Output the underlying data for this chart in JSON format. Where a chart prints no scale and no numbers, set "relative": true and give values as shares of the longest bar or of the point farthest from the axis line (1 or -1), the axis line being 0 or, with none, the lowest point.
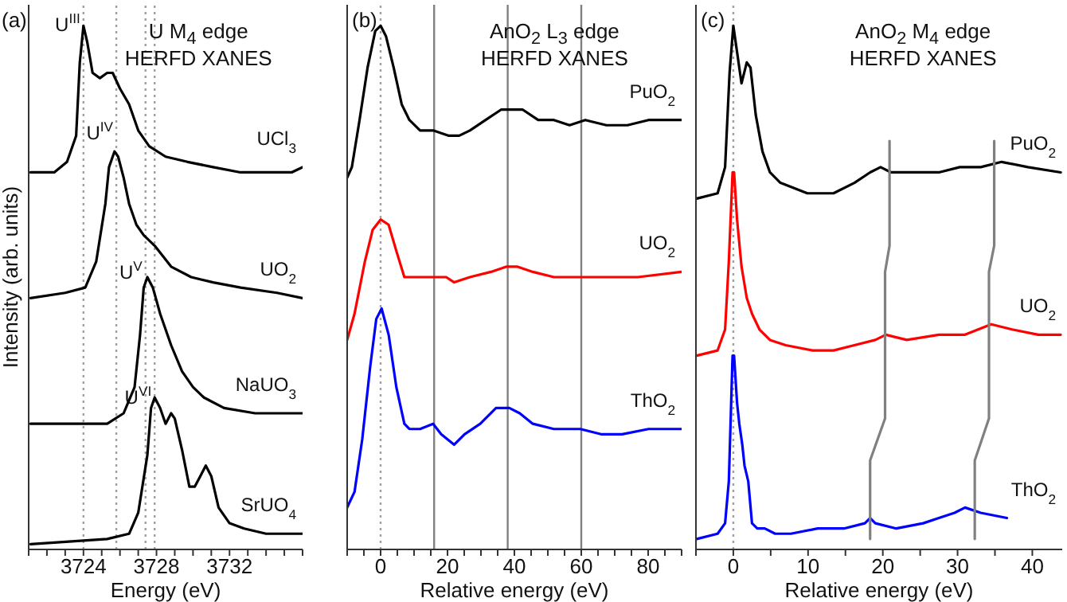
{
  "chart_data": [
    {
      "type": "line",
      "xlabel": "Energy (eV)",
      "ylabel": "Intensity (arb. units)",
      "relative": true,
      "tick_labels": "x",
      "marker": "none",
      "line_style": "solid",
      "xlim": [
        3721,
        3736
      ],
      "xticks": [
        {
          "value": 3721,
          "label": null
        },
        {
          "value": 3722,
          "label": null
        },
        {
          "value": 3723,
          "label": null
        },
        3724,
        {
          "value": 3725,
          "label": null
        },
        {
          "value": 3726,
          "label": null
        },
        {
          "value": 3727,
          "label": null
        },
        3728,
        {
          "value": 3729,
          "label": null
        },
        {
          "value": 3730,
          "label": null
        },
        {
          "value": 3731,
          "label": null
        },
        3732,
        {
          "value": 3733,
          "label": null
        },
        {
          "value": 3734,
          "label": null
        },
        {
          "value": 3735,
          "label": null
        },
        {
          "value": 3736,
          "label": null
        }
      ],
      "annotations": [
        "(a)",
        "U M$_{4}$ edge",
        "HERFD XANES"
      ],
      "ref_lines": [
        {
          "axis": "x",
          "value": 3724.0,
          "label": "U$^{III}$",
          "color": "#a0a0a0",
          "line_style": "dotted"
        },
        {
          "axis": "x",
          "value": 3725.8,
          "label": "U$^{IV}$",
          "color": "#a0a0a0",
          "line_style": "dotted"
        },
        {
          "axis": "x",
          "value": 3727.4,
          "label": "U$^{V}$",
          "color": "#a0a0a0",
          "line_style": "dotted"
        },
        {
          "axis": "x",
          "value": 3727.9,
          "label": "U$^{VI}$",
          "color": "#a0a0a0",
          "line_style": "dotted"
        }
      ],
      "series": [
        {
          "name": "UCl$_{3}$",
          "color": "#000000",
          "x": [
            3721.1,
            3722.4,
            3723.1,
            3723.6,
            3723.8,
            3724.0,
            3724.2,
            3724.5,
            3724.9,
            3725.3,
            3725.6,
            3726.0,
            3726.5,
            3727.0,
            3727.6,
            3728.5,
            3729.7,
            3731.1,
            3732.6,
            3734.0,
            3735.4,
            3736.0
          ],
          "values": [
            0.72,
            0.72,
            0.74,
            0.79,
            0.93,
            1.0,
            0.97,
            0.91,
            0.9,
            0.91,
            0.91,
            0.88,
            0.85,
            0.8,
            0.77,
            0.75,
            0.74,
            0.73,
            0.72,
            0.72,
            0.72,
            0.73
          ]
        },
        {
          "name": "UO$_{2}$",
          "color": "#000000",
          "x": [
            3721.1,
            3723.0,
            3724.1,
            3724.7,
            3725.2,
            3725.4,
            3725.7,
            3725.9,
            3726.2,
            3726.5,
            3726.9,
            3727.3,
            3727.9,
            3728.8,
            3729.9,
            3731.1,
            3732.6,
            3734.6,
            3736.0
          ],
          "values": [
            0.48,
            0.49,
            0.5,
            0.55,
            0.66,
            0.73,
            0.76,
            0.75,
            0.71,
            0.66,
            0.62,
            0.6,
            0.58,
            0.54,
            0.52,
            0.51,
            0.5,
            0.49,
            0.48
          ]
        },
        {
          "name": "NaUO$_{3}$",
          "color": "#000000",
          "x": [
            3721.1,
            3723.9,
            3725.3,
            3726.2,
            3726.8,
            3727.1,
            3727.3,
            3727.5,
            3727.8,
            3728.2,
            3728.8,
            3729.4,
            3730.0,
            3730.6,
            3731.7,
            3733.4,
            3736.0
          ],
          "values": [
            0.24,
            0.24,
            0.24,
            0.26,
            0.31,
            0.41,
            0.5,
            0.52,
            0.5,
            0.45,
            0.39,
            0.34,
            0.31,
            0.29,
            0.27,
            0.26,
            0.26
          ]
        },
        {
          "name": "SrUO$_{4}$",
          "color": "#000000",
          "x": [
            3721.1,
            3725.3,
            3726.5,
            3727.0,
            3727.5,
            3727.7,
            3727.9,
            3728.2,
            3728.5,
            3728.8,
            3729.0,
            3729.4,
            3729.8,
            3730.1,
            3730.4,
            3730.7,
            3731.0,
            3731.4,
            3732.0,
            3732.8,
            3734.0,
            3736.0
          ],
          "values": [
            0.01,
            0.02,
            0.03,
            0.07,
            0.18,
            0.27,
            0.29,
            0.27,
            0.24,
            0.26,
            0.25,
            0.19,
            0.12,
            0.12,
            0.14,
            0.16,
            0.14,
            0.08,
            0.05,
            0.04,
            0.03,
            0.03
          ]
        }
      ]
    },
    {
      "type": "line",
      "xlabel": "Relative energy (eV)",
      "relative": true,
      "tick_labels": "x",
      "marker": "none",
      "line_style": "solid",
      "xlim": [
        -10,
        90
      ],
      "xticks": [
        {
          "value": -10,
          "label": null
        },
        {
          "value": -5,
          "label": null
        },
        0,
        {
          "value": 5,
          "label": null
        },
        {
          "value": 10,
          "label": null
        },
        {
          "value": 15,
          "label": null
        },
        20,
        {
          "value": 25,
          "label": null
        },
        {
          "value": 30,
          "label": null
        },
        {
          "value": 35,
          "label": null
        },
        40,
        {
          "value": 45,
          "label": null
        },
        {
          "value": 50,
          "label": null
        },
        {
          "value": 55,
          "label": null
        },
        60,
        {
          "value": 65,
          "label": null
        },
        {
          "value": 70,
          "label": null
        },
        {
          "value": 75,
          "label": null
        },
        80,
        {
          "value": 85,
          "label": null
        },
        {
          "value": 90,
          "label": null
        }
      ],
      "annotations": [
        "(b)",
        "AnO$_{2}$ L$_{3}$ edge",
        "HERFD XANES"
      ],
      "ref_lines": [
        {
          "axis": "x",
          "value": 0,
          "color": "#a0a0a0",
          "line_style": "dotted"
        },
        {
          "axis": "x",
          "value": 16,
          "color": "#808080",
          "line_style": "solid"
        },
        {
          "axis": "x",
          "value": 38,
          "color": "#808080",
          "line_style": "solid"
        },
        {
          "axis": "x",
          "value": 60,
          "color": "#808080",
          "line_style": "solid"
        }
      ],
      "series": [
        {
          "name": "PuO$_{2}$",
          "color": "#000000",
          "x": [
            -10,
            -8.6,
            -6.3,
            -3.9,
            -1.6,
            0,
            1.6,
            3.9,
            6.3,
            8.6,
            11.8,
            15.7,
            20.4,
            23.5,
            26.7,
            31.4,
            36.1,
            39.2,
            42.4,
            47.1,
            51.8,
            56.5,
            61.2,
            67.5,
            73.8,
            80.1,
            90
          ],
          "values": [
            0.71,
            0.73,
            0.82,
            0.92,
            0.99,
            1.0,
            0.98,
            0.92,
            0.85,
            0.82,
            0.8,
            0.8,
            0.79,
            0.79,
            0.8,
            0.82,
            0.84,
            0.84,
            0.84,
            0.82,
            0.82,
            0.81,
            0.82,
            0.81,
            0.81,
            0.82,
            0.82
          ]
        },
        {
          "name": "UO$_{2}$",
          "color": "#ff0000",
          "x": [
            -10,
            -7.8,
            -4.7,
            -2.4,
            0,
            2.4,
            4.7,
            7.1,
            9.4,
            12.6,
            16.5,
            19.6,
            22,
            26.7,
            33,
            37.7,
            40.8,
            45.5,
            51.8,
            59.7,
            67.5,
            76.9,
            90
          ],
          "values": [
            0.4,
            0.45,
            0.55,
            0.61,
            0.63,
            0.62,
            0.57,
            0.52,
            0.52,
            0.52,
            0.52,
            0.52,
            0.51,
            0.52,
            0.53,
            0.54,
            0.54,
            0.53,
            0.52,
            0.52,
            0.52,
            0.52,
            0.53
          ]
        },
        {
          "name": "ThO$_{2}$",
          "color": "#0000ff",
          "x": [
            -10,
            -7.8,
            -5.5,
            -3.1,
            -1.3,
            0.3,
            2.4,
            4.7,
            7.1,
            8.6,
            11.8,
            15.7,
            18.1,
            22,
            25.1,
            29.8,
            34.5,
            38.5,
            41.6,
            45.5,
            51.8,
            59.7,
            65.9,
            72.2,
            80.1,
            90
          ],
          "values": [
            0.08,
            0.11,
            0.21,
            0.35,
            0.44,
            0.46,
            0.41,
            0.31,
            0.24,
            0.23,
            0.23,
            0.24,
            0.22,
            0.2,
            0.22,
            0.24,
            0.27,
            0.27,
            0.26,
            0.24,
            0.23,
            0.23,
            0.22,
            0.22,
            0.23,
            0.23
          ]
        }
      ]
    },
    {
      "type": "line",
      "xlabel": "Relative energy (eV)",
      "relative": true,
      "tick_labels": "x",
      "marker": "none",
      "line_style": "solid",
      "xlim": [
        -5,
        44
      ],
      "xticks": [
        {
          "value": -5,
          "label": null
        },
        0,
        {
          "value": 5,
          "label": null
        },
        10,
        {
          "value": 15,
          "label": null
        },
        20,
        {
          "value": 25,
          "label": null
        },
        30,
        {
          "value": 35,
          "label": null
        },
        40
      ],
      "annotations": [
        "(c)",
        "AnO$_{2}$ M$_{4}$ edge",
        "HERFD XANES"
      ],
      "ref_lines": [
        {
          "axis": "x",
          "value": 0,
          "color": "#a0a0a0",
          "line_style": "dotted"
        }
      ],
      "series": [
        {
          "name": "PuO$_{2}$",
          "color": "#000000",
          "x": [
            -4.9,
            -2.1,
            -1.1,
            -0.5,
            0,
            0.5,
            1.1,
            1.8,
            2.3,
            3.0,
            3.9,
            4.9,
            6.3,
            9.9,
            13.4,
            16.2,
            18.3,
            19.7,
            21.1,
            23.2,
            27.5,
            30.3,
            33.1,
            35.9,
            39.4,
            43.8
          ],
          "values": [
            0.67,
            0.68,
            0.73,
            0.91,
            1.0,
            0.95,
            0.89,
            0.93,
            0.92,
            0.83,
            0.76,
            0.72,
            0.7,
            0.68,
            0.68,
            0.7,
            0.72,
            0.73,
            0.72,
            0.72,
            0.72,
            0.73,
            0.73,
            0.74,
            0.73,
            0.72
          ]
        },
        {
          "name": "UO$_{2}$",
          "color": "#ff0000",
          "x": [
            -4.9,
            -2.1,
            -1.1,
            -0.6,
            -0.1,
            0.1,
            0.5,
            1.1,
            1.8,
            2.5,
            3.5,
            4.9,
            7.0,
            10.6,
            13.4,
            16.2,
            19.0,
            20.4,
            23.2,
            27.5,
            31.0,
            34.5,
            37.3,
            40.8,
            43.8
          ],
          "values": [
            0.37,
            0.38,
            0.42,
            0.55,
            0.72,
            0.72,
            0.63,
            0.54,
            0.48,
            0.45,
            0.42,
            0.4,
            0.39,
            0.38,
            0.38,
            0.39,
            0.4,
            0.41,
            0.4,
            0.41,
            0.41,
            0.43,
            0.42,
            0.41,
            0.41
          ]
        },
        {
          "name": "ThO$_{2}$",
          "color": "#0000ff",
          "x": [
            -4.9,
            -2.1,
            -1.1,
            -0.6,
            -0.1,
            0.1,
            0.5,
            0.8,
            1.2,
            1.5,
            2.0,
            2.5,
            3.2,
            4.2,
            5.6,
            7.7,
            11.3,
            14.8,
            17.6,
            18.3,
            19.0,
            21.8,
            25.4,
            27.5,
            29.6,
            31.0,
            33.1,
            36.6
          ],
          "values": [
            0.02,
            0.03,
            0.05,
            0.13,
            0.37,
            0.37,
            0.28,
            0.24,
            0.2,
            0.16,
            0.13,
            0.05,
            0.04,
            0.04,
            0.03,
            0.03,
            0.04,
            0.04,
            0.05,
            0.06,
            0.05,
            0.04,
            0.05,
            0.06,
            0.07,
            0.08,
            0.07,
            0.06
          ]
        },
        {
          "color": "#808080",
          "x": [
            20.9,
            20.9,
            20.3,
            20.3,
            18.3,
            18.3
          ],
          "values": [
            0.78,
            0.58,
            0.53,
            0.25,
            0.17,
            0.02
          ]
        },
        {
          "color": "#808080",
          "x": [
            34.9,
            34.9,
            34.2,
            34.2,
            32.3,
            32.3
          ],
          "values": [
            0.78,
            0.58,
            0.53,
            0.25,
            0.17,
            0.02
          ]
        }
      ]
    }
  ]
}
